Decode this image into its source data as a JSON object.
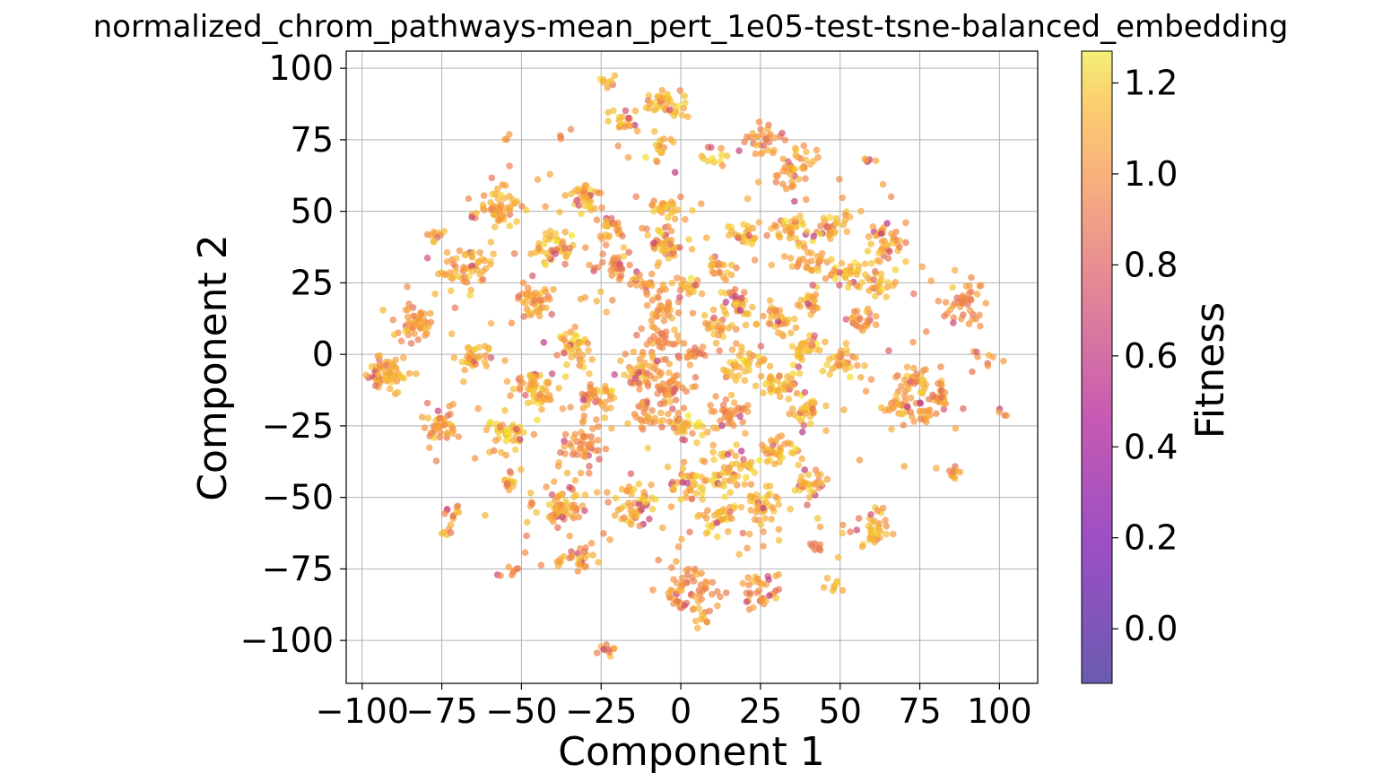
{
  "chart_data": {
    "type": "scatter",
    "title": "normalized_chrom_pathways-mean_pert_1e05-test-tsne-balanced_embedding",
    "xlabel": "Component 1",
    "ylabel": "Component 2",
    "xlim": [
      -105,
      112
    ],
    "ylim": [
      -115,
      106
    ],
    "xticks": [
      -100,
      -75,
      -50,
      -25,
      0,
      25,
      50,
      75,
      100
    ],
    "xtick_labels": [
      "−100",
      "−75",
      "−50",
      "−25",
      "0",
      "25",
      "50",
      "75",
      "100"
    ],
    "yticks": [
      -100,
      -75,
      -50,
      -25,
      0,
      25,
      50,
      75,
      100
    ],
    "ytick_labels": [
      "−100",
      "−75",
      "−50",
      "−25",
      "0",
      "25",
      "50",
      "75",
      "100"
    ],
    "grid": true,
    "colormap": "plasma",
    "colorbar": {
      "label": "Fitness",
      "range": [
        -0.12,
        1.27
      ],
      "ticks": [
        0.0,
        0.2,
        0.4,
        0.6,
        0.8,
        1.0,
        1.2
      ],
      "tick_labels": [
        "0.0",
        "0.2",
        "0.4",
        "0.6",
        "0.8",
        "1.0",
        "1.2"
      ]
    },
    "clusters": [
      {
        "x": -92,
        "y": -7,
        "r": 4.5,
        "n": 60,
        "fitness": 0.95
      },
      {
        "x": -83,
        "y": 12,
        "r": 4,
        "n": 45,
        "fitness": 0.9
      },
      {
        "x": -75,
        "y": -25,
        "r": 4,
        "n": 40,
        "fitness": 0.88
      },
      {
        "x": -67,
        "y": 29,
        "r": 5,
        "n": 55,
        "fitness": 0.95
      },
      {
        "x": -65,
        "y": -1,
        "r": 4,
        "n": 35,
        "fitness": 0.95
      },
      {
        "x": -57,
        "y": 51,
        "r": 4.5,
        "n": 55,
        "fitness": 1.0
      },
      {
        "x": -55,
        "y": -28,
        "r": 4,
        "n": 40,
        "fitness": 1.0
      },
      {
        "x": -54,
        "y": -44,
        "r": 2.5,
        "n": 15,
        "fitness": 0.95
      },
      {
        "x": -45,
        "y": 18,
        "r": 4,
        "n": 40,
        "fitness": 0.95
      },
      {
        "x": -45,
        "y": -12,
        "r": 5,
        "n": 55,
        "fitness": 1.0
      },
      {
        "x": -40,
        "y": 37,
        "r": 4,
        "n": 40,
        "fitness": 1.0
      },
      {
        "x": -38,
        "y": -53,
        "r": 5,
        "n": 55,
        "fitness": 0.95
      },
      {
        "x": -34,
        "y": 3,
        "r": 4,
        "n": 40,
        "fitness": 1.0
      },
      {
        "x": -30,
        "y": 55,
        "r": 3.5,
        "n": 35,
        "fitness": 1.0
      },
      {
        "x": -31,
        "y": -32,
        "r": 4.5,
        "n": 45,
        "fitness": 0.9
      },
      {
        "x": -27,
        "y": -15,
        "r": 4,
        "n": 40,
        "fitness": 0.95
      },
      {
        "x": -32,
        "y": -71,
        "r": 3,
        "n": 20,
        "fitness": 0.95
      },
      {
        "x": -21,
        "y": 45,
        "r": 3,
        "n": 20,
        "fitness": 1.0
      },
      {
        "x": -20,
        "y": 31,
        "r": 4,
        "n": 30,
        "fitness": 0.85
      },
      {
        "x": -18,
        "y": 81,
        "r": 3,
        "n": 20,
        "fitness": 1.0
      },
      {
        "x": -15,
        "y": -53,
        "r": 5,
        "n": 50,
        "fitness": 1.0
      },
      {
        "x": -12,
        "y": -7,
        "r": 5,
        "n": 45,
        "fitness": 0.95
      },
      {
        "x": -12,
        "y": 25,
        "r": 3,
        "n": 20,
        "fitness": 0.95
      },
      {
        "x": -10,
        "y": -20,
        "r": 4,
        "n": 30,
        "fitness": 0.85
      },
      {
        "x": -7,
        "y": 5,
        "r": 4,
        "n": 30,
        "fitness": 0.85
      },
      {
        "x": -5,
        "y": 87,
        "r": 4,
        "n": 40,
        "fitness": 1.0
      },
      {
        "x": -5,
        "y": 38,
        "r": 4,
        "n": 40,
        "fitness": 1.0
      },
      {
        "x": -5,
        "y": 52,
        "r": 3,
        "n": 25,
        "fitness": 1.0
      },
      {
        "x": -5,
        "y": 15,
        "r": 4,
        "n": 30,
        "fitness": 0.9
      },
      {
        "x": -3,
        "y": -12,
        "r": 4,
        "n": 35,
        "fitness": 0.85
      },
      {
        "x": 2,
        "y": -83,
        "r": 6,
        "n": 60,
        "fitness": 0.85
      },
      {
        "x": 2,
        "y": -45,
        "r": 4,
        "n": 35,
        "fitness": 1.0
      },
      {
        "x": 2,
        "y": -25,
        "r": 4,
        "n": 35,
        "fitness": 1.0
      },
      {
        "x": 3,
        "y": 24,
        "r": 3,
        "n": 20,
        "fitness": 1.0
      },
      {
        "x": 3,
        "y": 0,
        "r": 3,
        "n": 20,
        "fitness": 0.85
      },
      {
        "x": 12,
        "y": 10,
        "r": 3.5,
        "n": 25,
        "fitness": 1.0
      },
      {
        "x": 12,
        "y": 30,
        "r": 3,
        "n": 20,
        "fitness": 0.95
      },
      {
        "x": 13,
        "y": -57,
        "r": 4,
        "n": 35,
        "fitness": 1.0
      },
      {
        "x": 15,
        "y": -40,
        "r": 5,
        "n": 50,
        "fitness": 1.0
      },
      {
        "x": 16,
        "y": -20,
        "r": 4,
        "n": 35,
        "fitness": 0.85
      },
      {
        "x": 18,
        "y": 18,
        "r": 3.5,
        "n": 30,
        "fitness": 1.0
      },
      {
        "x": 20,
        "y": 42,
        "r": 3,
        "n": 25,
        "fitness": 1.0
      },
      {
        "x": 20,
        "y": -3,
        "r": 4,
        "n": 35,
        "fitness": 1.0
      },
      {
        "x": 25,
        "y": -82,
        "r": 4,
        "n": 35,
        "fitness": 0.9
      },
      {
        "x": 26,
        "y": -53,
        "r": 4,
        "n": 35,
        "fitness": 1.0
      },
      {
        "x": 26,
        "y": 75,
        "r": 4,
        "n": 30,
        "fitness": 0.9
      },
      {
        "x": 30,
        "y": -33,
        "r": 4,
        "n": 35,
        "fitness": 1.0
      },
      {
        "x": 30,
        "y": 12,
        "r": 4,
        "n": 30,
        "fitness": 0.95
      },
      {
        "x": 32,
        "y": -10,
        "r": 4.5,
        "n": 40,
        "fitness": 1.0
      },
      {
        "x": 34,
        "y": 44,
        "r": 3.5,
        "n": 30,
        "fitness": 1.0
      },
      {
        "x": 36,
        "y": 65,
        "r": 4.5,
        "n": 40,
        "fitness": 0.9
      },
      {
        "x": 38,
        "y": 2,
        "r": 3.5,
        "n": 30,
        "fitness": 1.0
      },
      {
        "x": 40,
        "y": -45,
        "r": 3.5,
        "n": 30,
        "fitness": 1.0
      },
      {
        "x": 40,
        "y": -20,
        "r": 3.5,
        "n": 30,
        "fitness": 1.0
      },
      {
        "x": 40,
        "y": 32,
        "r": 4,
        "n": 30,
        "fitness": 0.95
      },
      {
        "x": 40,
        "y": 18,
        "r": 3,
        "n": 20,
        "fitness": 0.95
      },
      {
        "x": 47,
        "y": 44,
        "r": 3.5,
        "n": 30,
        "fitness": 1.0
      },
      {
        "x": 49,
        "y": -2,
        "r": 3.5,
        "n": 30,
        "fitness": 1.0
      },
      {
        "x": 52,
        "y": 28,
        "r": 3,
        "n": 25,
        "fitness": 1.0
      },
      {
        "x": 57,
        "y": 12,
        "r": 3,
        "n": 25,
        "fitness": 0.9
      },
      {
        "x": 60,
        "y": -61,
        "r": 4,
        "n": 35,
        "fitness": 1.0
      },
      {
        "x": 62,
        "y": 27,
        "r": 4,
        "n": 30,
        "fitness": 1.0
      },
      {
        "x": 65,
        "y": 40,
        "r": 4,
        "n": 35,
        "fitness": 0.95
      },
      {
        "x": 68,
        "y": -18,
        "r": 4,
        "n": 30,
        "fitness": 0.95
      },
      {
        "x": 75,
        "y": -10,
        "r": 4,
        "n": 30,
        "fitness": 0.95
      },
      {
        "x": 78,
        "y": -20,
        "r": 3,
        "n": 20,
        "fitness": 0.9
      },
      {
        "x": 82,
        "y": -15,
        "r": 3,
        "n": 20,
        "fitness": 0.95
      },
      {
        "x": 86,
        "y": -42,
        "r": 2,
        "n": 10,
        "fitness": 0.9
      },
      {
        "x": 88,
        "y": 18,
        "r": 5,
        "n": 40,
        "fitness": 0.85
      },
      {
        "x": -23,
        "y": -103,
        "r": 2,
        "n": 10,
        "fitness": 0.95
      },
      {
        "x": -23,
        "y": 95,
        "r": 1.5,
        "n": 8,
        "fitness": 1.0
      },
      {
        "x": -36,
        "y": -72,
        "r": 2,
        "n": 8,
        "fitness": 0.9
      },
      {
        "x": 7,
        "y": -93,
        "r": 2,
        "n": 8,
        "fitness": 0.95
      },
      {
        "x": 43,
        "y": -67,
        "r": 2,
        "n": 8,
        "fitness": 0.7
      },
      {
        "x": 48,
        "y": -81,
        "r": 2,
        "n": 8,
        "fitness": 1.0
      },
      {
        "x": -72,
        "y": -55,
        "r": 2,
        "n": 10,
        "fitness": 1.0
      },
      {
        "x": -73,
        "y": -62,
        "r": 1.5,
        "n": 6,
        "fitness": 1.0
      },
      {
        "x": -76,
        "y": 42,
        "r": 2,
        "n": 8,
        "fitness": 0.95
      },
      {
        "x": -54,
        "y": -77,
        "r": 2,
        "n": 8,
        "fitness": 0.85
      },
      {
        "x": 58,
        "y": 68,
        "r": 1.5,
        "n": 5,
        "fitness": 0.95
      },
      {
        "x": 95,
        "y": 0,
        "r": 3,
        "n": 8,
        "fitness": 0.9
      },
      {
        "x": 101,
        "y": -21,
        "r": 1.5,
        "n": 4,
        "fitness": 0.8
      },
      {
        "x": -6,
        "y": 72,
        "r": 3,
        "n": 15,
        "fitness": 1.0
      },
      {
        "x": 10,
        "y": 70,
        "r": 3,
        "n": 12,
        "fitness": 1.0
      },
      {
        "x": -55,
        "y": 76,
        "r": 1,
        "n": 3,
        "fitness": 0.9
      },
      {
        "x": -37,
        "y": 76,
        "r": 1,
        "n": 3,
        "fitness": 0.9
      }
    ],
    "scatter_density": 1400
  }
}
